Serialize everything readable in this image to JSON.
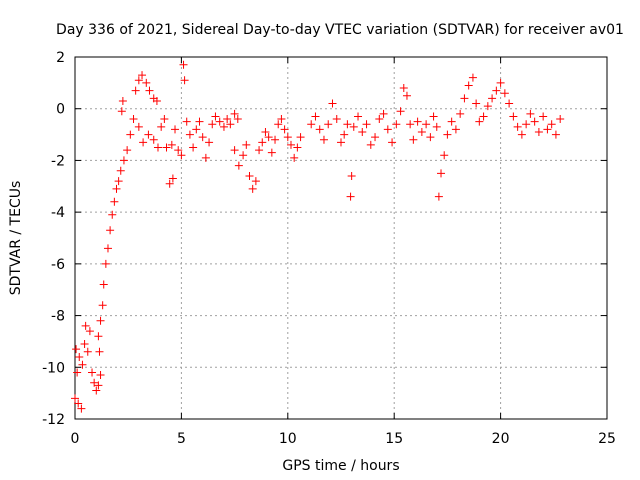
{
  "chart_data": {
    "type": "scatter",
    "title": "Day 336 of 2021, Sidereal Day-to-day VTEC variation (SDTVAR) for receiver av01",
    "xlabel": "GPS time / hours",
    "ylabel": "SDTVAR / TECUs",
    "xlim": [
      0,
      25
    ],
    "ylim": [
      -12,
      2
    ],
    "xticks": [
      0,
      5,
      10,
      15,
      20,
      25
    ],
    "xtick_labels": [
      "0",
      "5",
      "10",
      "15",
      "20",
      "25"
    ],
    "yticks": [
      2,
      0,
      -2,
      -4,
      -6,
      -8,
      -10,
      -12
    ],
    "ytick_labels": [
      "2",
      "0",
      "-2",
      "-4",
      "-6",
      "-8",
      "-10",
      "-12"
    ],
    "grid": true,
    "marker": "+",
    "colors": {
      "series": "#ff0000",
      "grid": "#a0a0a0",
      "axes": "#000000"
    },
    "series": [
      {
        "name": "SDTVAR",
        "points": [
          [
            0.0,
            -11.2
          ],
          [
            0.15,
            -11.4
          ],
          [
            0.3,
            -11.6
          ],
          [
            0.05,
            -9.3
          ],
          [
            0.1,
            -10.2
          ],
          [
            0.2,
            -9.6
          ],
          [
            0.35,
            -9.9
          ],
          [
            0.45,
            -9.1
          ],
          [
            0.5,
            -8.4
          ],
          [
            0.6,
            -9.4
          ],
          [
            0.7,
            -8.6
          ],
          [
            0.8,
            -10.2
          ],
          [
            0.9,
            -10.6
          ],
          [
            1.0,
            -10.9
          ],
          [
            1.1,
            -10.7
          ],
          [
            1.2,
            -10.3
          ],
          [
            1.15,
            -9.4
          ],
          [
            1.1,
            -8.8
          ],
          [
            1.2,
            -8.2
          ],
          [
            1.3,
            -7.6
          ],
          [
            1.35,
            -6.8
          ],
          [
            1.45,
            -6.0
          ],
          [
            1.55,
            -5.4
          ],
          [
            1.65,
            -4.7
          ],
          [
            1.75,
            -4.1
          ],
          [
            1.85,
            -3.6
          ],
          [
            1.95,
            -3.1
          ],
          [
            2.05,
            -2.8
          ],
          [
            2.15,
            -2.4
          ],
          [
            2.3,
            -2.0
          ],
          [
            2.2,
            -0.1
          ],
          [
            2.25,
            0.3
          ],
          [
            2.45,
            -1.6
          ],
          [
            2.6,
            -1.0
          ],
          [
            2.75,
            -0.4
          ],
          [
            2.85,
            0.7
          ],
          [
            3.0,
            1.1
          ],
          [
            3.15,
            1.3
          ],
          [
            3.35,
            1.0
          ],
          [
            3.5,
            0.7
          ],
          [
            3.7,
            0.4
          ],
          [
            3.85,
            0.3
          ],
          [
            3.0,
            -0.7
          ],
          [
            3.2,
            -1.3
          ],
          [
            3.45,
            -1.0
          ],
          [
            3.7,
            -1.2
          ],
          [
            3.9,
            -1.5
          ],
          [
            4.05,
            -0.7
          ],
          [
            4.2,
            -0.4
          ],
          [
            4.3,
            -1.5
          ],
          [
            4.45,
            -2.9
          ],
          [
            4.6,
            -2.7
          ],
          [
            4.7,
            -0.8
          ],
          [
            4.55,
            -1.4
          ],
          [
            4.85,
            -1.6
          ],
          [
            5.0,
            -1.8
          ],
          [
            5.1,
            1.7
          ],
          [
            5.15,
            1.1
          ],
          [
            5.25,
            -0.5
          ],
          [
            5.4,
            -1.0
          ],
          [
            5.55,
            -1.5
          ],
          [
            5.7,
            -0.8
          ],
          [
            5.85,
            -0.5
          ],
          [
            6.0,
            -1.1
          ],
          [
            6.15,
            -1.9
          ],
          [
            6.3,
            -1.3
          ],
          [
            6.45,
            -0.6
          ],
          [
            6.6,
            -0.3
          ],
          [
            6.8,
            -0.5
          ],
          [
            7.0,
            -0.7
          ],
          [
            7.15,
            -0.4
          ],
          [
            7.3,
            -0.6
          ],
          [
            7.5,
            -0.2
          ],
          [
            7.65,
            -0.4
          ],
          [
            7.5,
            -1.6
          ],
          [
            7.7,
            -2.2
          ],
          [
            7.9,
            -1.8
          ],
          [
            8.05,
            -1.4
          ],
          [
            8.2,
            -2.6
          ],
          [
            8.35,
            -3.1
          ],
          [
            8.5,
            -2.8
          ],
          [
            8.65,
            -1.6
          ],
          [
            8.8,
            -1.3
          ],
          [
            8.95,
            -0.9
          ],
          [
            9.1,
            -1.1
          ],
          [
            9.25,
            -1.7
          ],
          [
            9.4,
            -1.2
          ],
          [
            9.55,
            -0.6
          ],
          [
            9.7,
            -0.4
          ],
          [
            9.85,
            -0.8
          ],
          [
            10.0,
            -1.1
          ],
          [
            10.15,
            -1.4
          ],
          [
            10.3,
            -1.9
          ],
          [
            10.45,
            -1.5
          ],
          [
            10.6,
            -1.1
          ],
          [
            11.1,
            -0.6
          ],
          [
            11.3,
            -0.3
          ],
          [
            11.5,
            -0.8
          ],
          [
            11.7,
            -1.2
          ],
          [
            11.9,
            -0.6
          ],
          [
            12.1,
            0.2
          ],
          [
            12.3,
            -0.4
          ],
          [
            12.5,
            -1.3
          ],
          [
            12.65,
            -1.0
          ],
          [
            12.8,
            -0.6
          ],
          [
            12.95,
            -3.4
          ],
          [
            13.0,
            -2.6
          ],
          [
            13.1,
            -0.7
          ],
          [
            13.3,
            -0.3
          ],
          [
            13.5,
            -0.9
          ],
          [
            13.7,
            -0.6
          ],
          [
            13.9,
            -1.4
          ],
          [
            14.1,
            -1.1
          ],
          [
            14.3,
            -0.4
          ],
          [
            14.5,
            -0.2
          ],
          [
            14.7,
            -0.8
          ],
          [
            14.9,
            -1.3
          ],
          [
            15.1,
            -0.6
          ],
          [
            15.3,
            -0.1
          ],
          [
            15.45,
            0.8
          ],
          [
            15.6,
            0.5
          ],
          [
            15.75,
            -0.6
          ],
          [
            15.9,
            -1.2
          ],
          [
            16.1,
            -0.5
          ],
          [
            16.3,
            -0.9
          ],
          [
            16.5,
            -0.6
          ],
          [
            16.7,
            -1.1
          ],
          [
            16.85,
            -0.3
          ],
          [
            17.0,
            -0.7
          ],
          [
            17.1,
            -3.4
          ],
          [
            17.2,
            -2.5
          ],
          [
            17.35,
            -1.8
          ],
          [
            17.5,
            -1.0
          ],
          [
            17.7,
            -0.5
          ],
          [
            17.9,
            -0.8
          ],
          [
            18.1,
            -0.2
          ],
          [
            18.3,
            0.4
          ],
          [
            18.5,
            0.9
          ],
          [
            18.7,
            1.2
          ],
          [
            18.85,
            0.2
          ],
          [
            19.0,
            -0.5
          ],
          [
            19.2,
            -0.3
          ],
          [
            19.4,
            0.1
          ],
          [
            19.6,
            0.4
          ],
          [
            19.8,
            0.7
          ],
          [
            20.0,
            1.0
          ],
          [
            20.2,
            0.6
          ],
          [
            20.4,
            0.2
          ],
          [
            20.6,
            -0.3
          ],
          [
            20.8,
            -0.7
          ],
          [
            21.0,
            -1.0
          ],
          [
            21.2,
            -0.6
          ],
          [
            21.4,
            -0.2
          ],
          [
            21.6,
            -0.5
          ],
          [
            21.8,
            -0.9
          ],
          [
            22.0,
            -0.3
          ],
          [
            22.2,
            -0.8
          ],
          [
            22.4,
            -0.6
          ],
          [
            22.6,
            -1.0
          ],
          [
            22.8,
            -0.4
          ]
        ]
      }
    ]
  }
}
